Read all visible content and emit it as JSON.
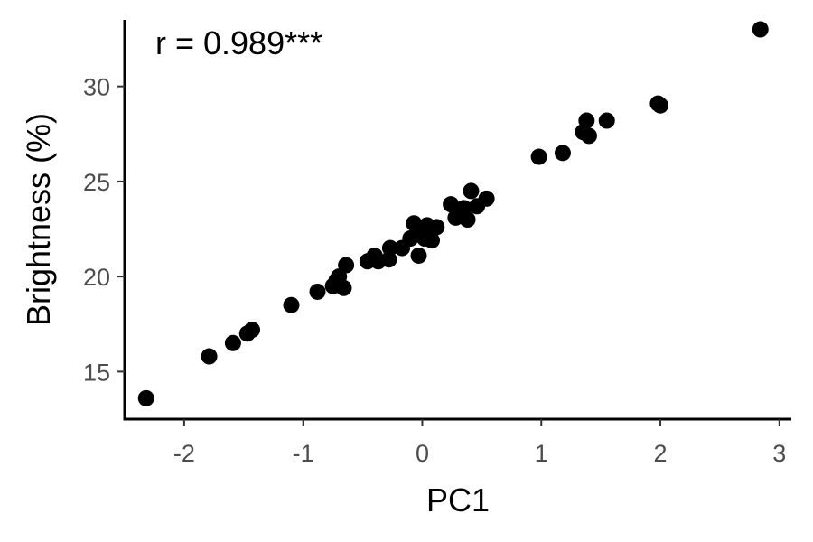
{
  "chart_data": {
    "type": "scatter",
    "annotation": "r = 0.989***",
    "xlabel": "PC1",
    "ylabel": "Brightness (%)",
    "xlim": [
      -2.5,
      3.1
    ],
    "ylim": [
      12.5,
      33.5
    ],
    "xticks": [
      -2,
      -1,
      0,
      1,
      2,
      3
    ],
    "yticks": [
      15,
      20,
      25,
      30
    ],
    "xtick_labels": [
      "-2",
      "-1",
      "0",
      "1",
      "2",
      "3"
    ],
    "ytick_labels": [
      "15",
      "20",
      "25",
      "30"
    ],
    "grid": false,
    "point_color": "#000000",
    "points": [
      {
        "x": -2.32,
        "y": 13.6
      },
      {
        "x": -1.79,
        "y": 15.8
      },
      {
        "x": -1.59,
        "y": 16.5
      },
      {
        "x": -1.47,
        "y": 17.0
      },
      {
        "x": -1.43,
        "y": 17.2
      },
      {
        "x": -1.1,
        "y": 18.5
      },
      {
        "x": -0.88,
        "y": 19.2
      },
      {
        "x": -0.75,
        "y": 19.5
      },
      {
        "x": -0.72,
        "y": 19.8
      },
      {
        "x": -0.7,
        "y": 20.0
      },
      {
        "x": -0.66,
        "y": 19.4
      },
      {
        "x": -0.64,
        "y": 20.6
      },
      {
        "x": -0.46,
        "y": 20.8
      },
      {
        "x": -0.4,
        "y": 21.1
      },
      {
        "x": -0.37,
        "y": 20.8
      },
      {
        "x": -0.28,
        "y": 20.9
      },
      {
        "x": -0.27,
        "y": 21.5
      },
      {
        "x": -0.17,
        "y": 21.5
      },
      {
        "x": -0.1,
        "y": 22.0
      },
      {
        "x": -0.07,
        "y": 22.8
      },
      {
        "x": -0.03,
        "y": 21.1
      },
      {
        "x": -0.02,
        "y": 22.2
      },
      {
        "x": 0.02,
        "y": 22.0
      },
      {
        "x": 0.04,
        "y": 22.7
      },
      {
        "x": 0.08,
        "y": 21.9
      },
      {
        "x": 0.12,
        "y": 22.6
      },
      {
        "x": 0.24,
        "y": 23.8
      },
      {
        "x": 0.28,
        "y": 23.1
      },
      {
        "x": 0.35,
        "y": 23.6
      },
      {
        "x": 0.38,
        "y": 23.0
      },
      {
        "x": 0.41,
        "y": 24.5
      },
      {
        "x": 0.46,
        "y": 23.7
      },
      {
        "x": 0.54,
        "y": 24.1
      },
      {
        "x": 0.98,
        "y": 26.3
      },
      {
        "x": 1.18,
        "y": 26.5
      },
      {
        "x": 1.35,
        "y": 27.6
      },
      {
        "x": 1.38,
        "y": 28.2
      },
      {
        "x": 1.4,
        "y": 27.4
      },
      {
        "x": 1.55,
        "y": 28.2
      },
      {
        "x": 1.98,
        "y": 29.1
      },
      {
        "x": 2.0,
        "y": 29.0
      },
      {
        "x": 2.84,
        "y": 33.0
      }
    ]
  }
}
